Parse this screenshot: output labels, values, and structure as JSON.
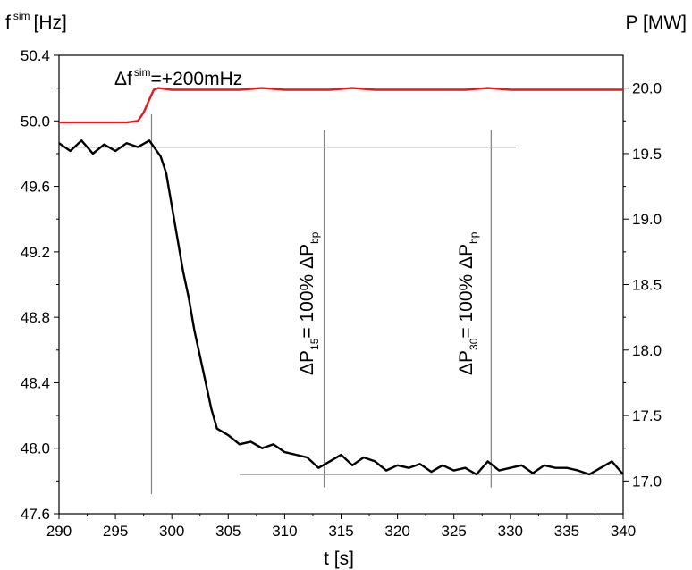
{
  "chart_data": {
    "type": "line",
    "left_axis": {
      "label_base": "f",
      "label_sup": "sim",
      "label_unit": "[Hz]",
      "range": [
        47.6,
        50.4
      ],
      "ticks": [
        {
          "v": 50.4,
          "label": "50.4"
        },
        {
          "v": 50.0,
          "label": "50.0"
        },
        {
          "v": 49.6,
          "label": "49.6"
        },
        {
          "v": 49.2,
          "label": "49.2"
        },
        {
          "v": 48.8,
          "label": "48.8"
        },
        {
          "v": 48.4,
          "label": "48.4"
        },
        {
          "v": 48.0,
          "label": "48.0"
        },
        {
          "v": 47.6,
          "label": "47.6"
        }
      ]
    },
    "right_axis": {
      "label": "P [MW]",
      "range": [
        16.75,
        20.25
      ],
      "ticks": [
        {
          "v": 20.0,
          "label": "20.0"
        },
        {
          "v": 19.5,
          "label": "19.5"
        },
        {
          "v": 19.0,
          "label": "19.0"
        },
        {
          "v": 18.5,
          "label": "18.5"
        },
        {
          "v": 18.0,
          "label": "18.0"
        },
        {
          "v": 17.5,
          "label": "17.5"
        },
        {
          "v": 17.0,
          "label": "17.0"
        }
      ]
    },
    "x_axis": {
      "label": "t [s]",
      "range": [
        290,
        340
      ],
      "ticks": [
        {
          "v": 290,
          "label": "290"
        },
        {
          "v": 295,
          "label": "295"
        },
        {
          "v": 300,
          "label": "300"
        },
        {
          "v": 305,
          "label": "305"
        },
        {
          "v": 310,
          "label": "310"
        },
        {
          "v": 315,
          "label": "315"
        },
        {
          "v": 320,
          "label": "320"
        },
        {
          "v": 325,
          "label": "325"
        },
        {
          "v": 330,
          "label": "330"
        },
        {
          "v": 335,
          "label": "335"
        },
        {
          "v": 340,
          "label": "340"
        }
      ]
    },
    "series": [
      {
        "axis": "left",
        "color": "#e8191d",
        "x": [
          290,
          293,
          296,
          297,
          297.5,
          298,
          298.4,
          298.8,
          300,
          302,
          304,
          306,
          308,
          310,
          312,
          314,
          316,
          318,
          320,
          322,
          324,
          326,
          328,
          330,
          332,
          334,
          336,
          338,
          340
        ],
        "y": [
          49.99,
          49.99,
          49.99,
          50.0,
          50.05,
          50.13,
          50.19,
          50.2,
          50.19,
          50.19,
          50.19,
          50.19,
          50.2,
          50.19,
          50.19,
          50.19,
          50.2,
          50.19,
          50.19,
          50.19,
          50.19,
          50.19,
          50.2,
          50.19,
          50.19,
          50.19,
          50.19,
          50.19,
          50.19
        ]
      },
      {
        "axis": "right",
        "color": "#000000",
        "x": [
          290,
          291,
          292,
          293,
          294,
          295,
          296,
          297,
          298,
          299,
          299.5,
          300,
          300.5,
          301,
          301.5,
          302,
          302.5,
          303,
          303.5,
          304,
          305,
          306,
          307,
          308,
          309,
          310,
          311,
          312,
          313,
          314,
          315,
          316,
          317,
          318,
          319,
          320,
          321,
          322,
          323,
          324,
          325,
          326,
          327,
          328,
          329,
          330,
          331,
          332,
          333,
          334,
          335,
          336,
          337,
          338,
          339,
          340
        ],
        "y": [
          19.58,
          19.52,
          19.6,
          19.5,
          19.57,
          19.52,
          19.58,
          19.55,
          19.6,
          19.48,
          19.35,
          19.1,
          18.85,
          18.6,
          18.4,
          18.15,
          17.95,
          17.75,
          17.55,
          17.4,
          17.35,
          17.28,
          17.3,
          17.25,
          17.28,
          17.22,
          17.2,
          17.18,
          17.1,
          17.15,
          17.2,
          17.12,
          17.18,
          17.15,
          17.08,
          17.12,
          17.1,
          17.13,
          17.07,
          17.12,
          17.08,
          17.1,
          17.05,
          17.15,
          17.08,
          17.1,
          17.12,
          17.06,
          17.12,
          17.1,
          17.1,
          17.08,
          17.05,
          17.1,
          17.15,
          17.05
        ]
      }
    ],
    "reference_lines": [
      {
        "axis": "right",
        "y": 19.55,
        "x": [
          290,
          330.5
        ],
        "color": "#808080"
      },
      {
        "axis": "right",
        "y": 17.05,
        "x": [
          306,
          340
        ],
        "color": "#808080"
      },
      {
        "axis": "right",
        "x": 298.2,
        "y": [
          16.9,
          19.8
        ],
        "color": "#808080"
      },
      {
        "axis": "right",
        "x": 313.5,
        "y": [
          16.95,
          19.68
        ],
        "color": "#808080"
      },
      {
        "axis": "right",
        "x": 328.3,
        "y": [
          16.95,
          19.68
        ],
        "color": "#808080"
      }
    ],
    "annotations": {
      "delta_f": {
        "base": "Δf",
        "sup": "sim",
        "rest": "=+200mHz"
      },
      "p15": {
        "delta": "ΔP",
        "sub": "15",
        "middle": "= 100% ΔP",
        "sub2": "bp"
      },
      "p30": {
        "delta": "ΔP",
        "sub": "30",
        "middle": "= 100% ΔP",
        "sub2": "bp"
      }
    },
    "grid": false,
    "legend": "none"
  }
}
